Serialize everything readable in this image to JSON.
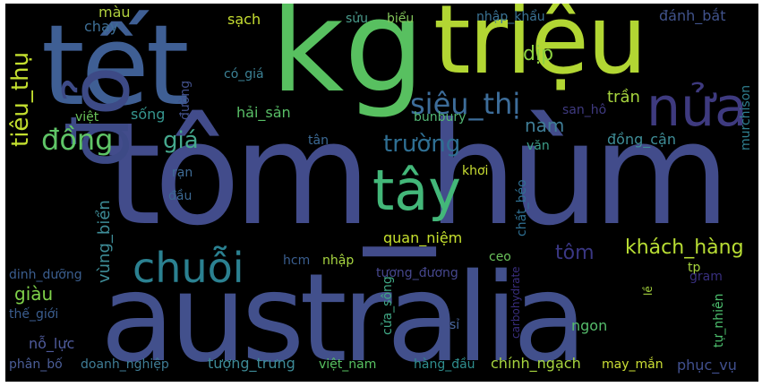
{
  "background": "#000000",
  "words": [
    {
      "text": "tôm_hùm",
      "color": "#424c8b"
    },
    {
      "text": "kg",
      "color": "#58c060"
    },
    {
      "text": "triệu",
      "color": "#b2d633"
    },
    {
      "text": "tết",
      "color": "#3f5f94"
    },
    {
      "text": "australia",
      "color": "#42508c"
    },
    {
      "text": "đỏ",
      "color": "#3d4a86"
    },
    {
      "text": "tây",
      "color": "#43b779"
    },
    {
      "text": "nửa",
      "color": "#3e3a7f"
    },
    {
      "text": "chuỗi",
      "color": "#2b8191"
    },
    {
      "text": "siêu_thị",
      "color": "#3d6d9a"
    },
    {
      "text": "tiêu_thụ",
      "color": "#c3df2f"
    },
    {
      "text": "đồng",
      "color": "#5fc567"
    },
    {
      "text": "giá",
      "color": "#45a88d"
    },
    {
      "text": "trường",
      "color": "#2f6f93"
    },
    {
      "text": "khách_hàng",
      "color": "#b8dd34"
    },
    {
      "text": "tôm",
      "color": "#3a3783"
    },
    {
      "text": "vùng_biển",
      "color": "#3e8d98"
    },
    {
      "text": "giàu",
      "color": "#7fd14a"
    },
    {
      "text": "dịp",
      "color": "#8cd141"
    },
    {
      "text": "nam",
      "color": "#3f7d96"
    },
    {
      "text": "trần",
      "color": "#a6d43e"
    },
    {
      "text": "quan_niệm",
      "color": "#c6e02e"
    },
    {
      "text": "màu",
      "color": "#b0d03e"
    },
    {
      "text": "chạy",
      "color": "#3e6f96"
    },
    {
      "text": "sạch",
      "color": "#c6dd31"
    },
    {
      "text": "sửu",
      "color": "#4a9c8d"
    },
    {
      "text": "biểu",
      "color": "#83c55a"
    },
    {
      "text": "nhập_khẩu",
      "color": "#3b7496"
    },
    {
      "text": "đánh_bắt",
      "color": "#41538c"
    },
    {
      "text": "có_giá",
      "color": "#3c8296"
    },
    {
      "text": "đường",
      "color": "#42518c"
    },
    {
      "text": "việt",
      "color": "#6ac55a"
    },
    {
      "text": "sống",
      "color": "#36968f"
    },
    {
      "text": "hải_sản",
      "color": "#59bf67"
    },
    {
      "text": "san_hô",
      "color": "#3f3a80"
    },
    {
      "text": "bunbury",
      "color": "#52b675"
    },
    {
      "text": "tân",
      "color": "#3c6a95"
    },
    {
      "text": "văn",
      "color": "#3d9f8a"
    },
    {
      "text": "đồng_cận",
      "color": "#3f8e98"
    },
    {
      "text": "murchison",
      "color": "#2f7f8f"
    },
    {
      "text": "khơi",
      "color": "#c9de33"
    },
    {
      "text": "rạn",
      "color": "#3f6c96"
    },
    {
      "text": "đầu",
      "color": "#3c6892"
    },
    {
      "text": "chất_béo",
      "color": "#2f7093"
    },
    {
      "text": "tp",
      "color": "#a6d43e"
    },
    {
      "text": "gram",
      "color": "#382f7e"
    },
    {
      "text": "dinh_dưỡng",
      "color": "#3b5e8f"
    },
    {
      "text": "hcm",
      "color": "#3a5e8f"
    },
    {
      "text": "nhập",
      "color": "#a8d641"
    },
    {
      "text": "tương_đương",
      "color": "#46478d"
    },
    {
      "text": "ceo",
      "color": "#6ac25b"
    },
    {
      "text": "carbohydrate",
      "color": "#3a2e7f"
    },
    {
      "text": "lề",
      "color": "#a6d43e"
    },
    {
      "text": "thế_giới",
      "color": "#3b5e8f"
    },
    {
      "text": "cửa_sông",
      "color": "#40a885"
    },
    {
      "text": "sỉ",
      "color": "#4b69a0"
    },
    {
      "text": "ngon",
      "color": "#55bc6b"
    },
    {
      "text": "tự_nhiên",
      "color": "#4cbe6d"
    },
    {
      "text": "nỗ_lực",
      "color": "#4f5b9c"
    },
    {
      "text": "phân_bố",
      "color": "#4b5e98"
    },
    {
      "text": "doanh_nghiệp",
      "color": "#3f7d96"
    },
    {
      "text": "tượng_trưng",
      "color": "#3d8a96"
    },
    {
      "text": "việt_nam",
      "color": "#58c262"
    },
    {
      "text": "hàng_đầu",
      "color": "#2f8e8e"
    },
    {
      "text": "chính_ngạch",
      "color": "#a6d43e"
    },
    {
      "text": "may_mắn",
      "color": "#ccdf35"
    },
    {
      "text": "phục_vụ",
      "color": "#41508f"
    }
  ]
}
